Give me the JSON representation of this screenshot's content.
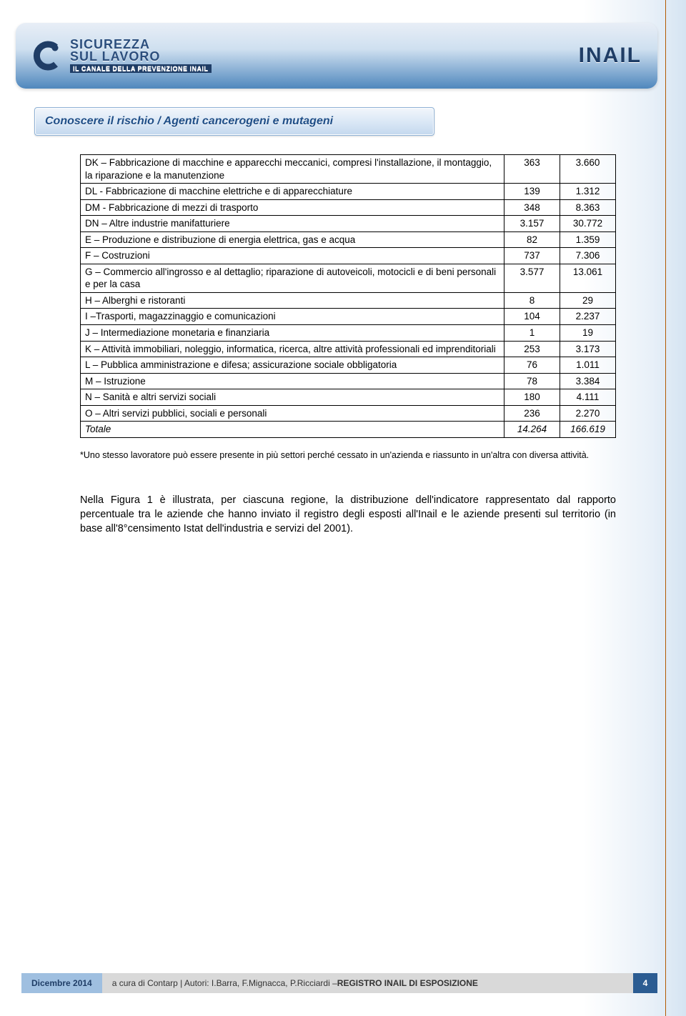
{
  "header": {
    "logo_left_line1": "SICUREZZA",
    "logo_left_line2": "SUL LAVORO",
    "logo_left_sub": "IL CANALE DELLA PREVENZIONE INAIL",
    "logo_right": "INAIL"
  },
  "tab": {
    "title": "Conoscere il rischio / Agenti cancerogeni e mutageni"
  },
  "table": {
    "col_widths": [
      "auto",
      "78px",
      "78px"
    ],
    "rows": [
      {
        "label": "DK – Fabbricazione di macchine e apparecchi meccanici, compresi l'installazione, il montaggio, la riparazione e la manutenzione",
        "v1": "363",
        "v2": "3.660"
      },
      {
        "label": "DL - Fabbricazione di macchine elettriche e di apparecchiature",
        "v1": "139",
        "v2": "1.312"
      },
      {
        "label": "DM - Fabbricazione di mezzi di trasporto",
        "v1": "348",
        "v2": "8.363"
      },
      {
        "label": "DN – Altre industrie manifatturiere",
        "v1": "3.157",
        "v2": "30.772"
      },
      {
        "label": "E – Produzione e distribuzione di energia elettrica, gas e acqua",
        "v1": "82",
        "v2": "1.359"
      },
      {
        "label": "F – Costruzioni",
        "v1": "737",
        "v2": "7.306"
      },
      {
        "label": "G – Commercio all'ingrosso e al dettaglio; riparazione di autoveicoli, motocicli e di beni personali e per la casa",
        "v1": "3.577",
        "v2": "13.061"
      },
      {
        "label": "H – Alberghi e ristoranti",
        "v1": "8",
        "v2": "29"
      },
      {
        "label": "I –Trasporti, magazzinaggio e comunicazioni",
        "v1": "104",
        "v2": "2.237"
      },
      {
        "label": "J – Intermediazione monetaria e finanziaria",
        "v1": "1",
        "v2": "19"
      },
      {
        "label": "K – Attività immobiliari, noleggio, informatica, ricerca, altre attività professionali ed imprenditoriali",
        "v1": "253",
        "v2": "3.173"
      },
      {
        "label": "L – Pubblica amministrazione e difesa; assicurazione sociale obbligatoria",
        "v1": "76",
        "v2": "1.011"
      },
      {
        "label": "M – Istruzione",
        "v1": "78",
        "v2": "3.384"
      },
      {
        "label": "N – Sanità e altri servizi sociali",
        "v1": "180",
        "v2": "4.111"
      },
      {
        "label": "O – Altri servizi pubblici, sociali e personali",
        "v1": "236",
        "v2": "2.270"
      }
    ],
    "total": {
      "label": "Totale",
      "v1": "14.264",
      "v2": "166.619"
    }
  },
  "footnote": "Uno stesso lavoratore può essere presente in più settori perché cessato in un'azienda e riassunto in un'altra con diversa attività.",
  "body_para": "Nella Figura 1 è illustrata, per ciascuna regione, la distribuzione dell'indicatore rappresentato dal rapporto percentuale tra le aziende che hanno inviato il registro degli esposti all'Inail e le aziende presenti sul territorio (in base all'8°censimento Istat dell'industria e servizi del 2001).",
  "footer": {
    "date": "Dicembre 2014",
    "credits_prefix": "a cura di Contarp | Autori: I.Barra, F.Mignacca, P.Ricciardi – ",
    "credits_bold": "REGISTRO INAIL DI ESPOSIZIONE",
    "page": "4"
  },
  "colors": {
    "brand_blue": "#2b5c92",
    "light_blue": "#9fbfe0",
    "pale_gray": "#d9d9d9",
    "rule_orange": "#b35a00"
  }
}
